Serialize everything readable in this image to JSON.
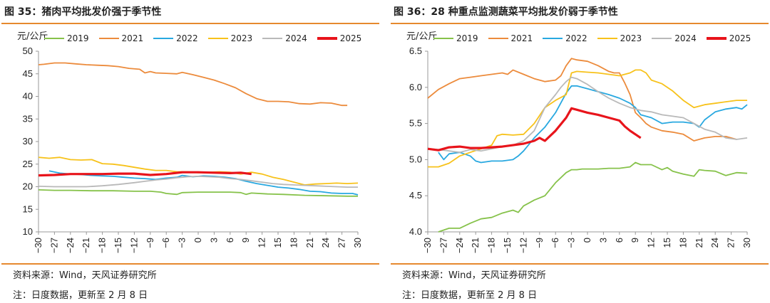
{
  "charts": [
    {
      "title": "图 35：猪肉平均批发价强于季节性",
      "source": "资料来源：Wind，天风证券研究所",
      "note": "注：日度数据，更新至 2 月 8 日"
    },
    {
      "title": "图 36：28 种重点监测蔬菜平均批发价弱于季节性",
      "source": "资料来源：Wind，天风证券研究所",
      "note": "注：日度数据，更新至 2 月 8 日"
    }
  ],
  "colors": {
    "2019": "#86c24a",
    "2021": "#ec8b3c",
    "2022": "#28a8e0",
    "2023": "#f7c21b",
    "2024": "#b9b9b9",
    "2025": "#e8141b",
    "rule": "#e6892e"
  },
  "chart_data": [
    {
      "type": "line",
      "title": "图 35：猪肉平均批发价强于季节性",
      "ylabel": "元/公斤",
      "xlabel": "",
      "ylim": [
        10,
        50
      ],
      "yticks": [
        "10",
        "15",
        "20",
        "25",
        "30",
        "35",
        "40",
        "45",
        "50"
      ],
      "xlim": [
        -30,
        30
      ],
      "xticks": [
        "−30",
        "−27",
        "−24",
        "−21",
        "−18",
        "−15",
        "−12",
        "−9",
        "−6",
        "−3",
        "0",
        "3",
        "6",
        "9",
        "12",
        "15",
        "18",
        "21",
        "24",
        "27",
        "30"
      ],
      "grid": false,
      "legend": "top",
      "series": [
        {
          "name": "2019",
          "x": [
            -30,
            -27,
            -24,
            -20,
            -16,
            -12,
            -9,
            -7,
            -6,
            -4,
            -3,
            0,
            3,
            6,
            8,
            9,
            10,
            13,
            16,
            20,
            24,
            28,
            30
          ],
          "y": [
            19.3,
            19.2,
            19.2,
            19.1,
            19.1,
            19.0,
            19.0,
            18.8,
            18.5,
            18.3,
            18.7,
            18.8,
            18.8,
            18.8,
            18.7,
            18.3,
            18.6,
            18.4,
            18.3,
            18.1,
            18.0,
            17.9,
            17.9
          ]
        },
        {
          "name": "2021",
          "x": [
            -30,
            -29,
            -27,
            -25,
            -23,
            -21,
            -19,
            -17,
            -15,
            -13,
            -11,
            -10,
            -9,
            -8,
            -6,
            -4,
            -3,
            -1,
            1,
            3,
            5,
            7,
            9,
            11,
            13,
            15,
            17,
            19,
            21,
            23,
            25,
            27,
            28
          ],
          "y": [
            47.0,
            47.1,
            47.4,
            47.4,
            47.2,
            47.0,
            46.9,
            46.8,
            46.6,
            46.2,
            46.0,
            45.2,
            45.5,
            45.2,
            45.1,
            45.0,
            45.3,
            44.8,
            44.2,
            43.6,
            42.8,
            41.9,
            40.6,
            39.5,
            38.9,
            38.9,
            38.8,
            38.4,
            38.3,
            38.6,
            38.5,
            38.0,
            38.0
          ]
        },
        {
          "name": "2022",
          "x": [
            -28,
            -26,
            -24,
            -22,
            -20,
            -18,
            -16,
            -14,
            -12,
            -10,
            -8,
            -6,
            -4,
            -3,
            -1,
            1,
            3,
            5,
            7,
            9,
            11,
            13,
            15,
            17,
            19,
            21,
            23,
            25,
            27,
            29,
            30
          ],
          "y": [
            23.5,
            23.0,
            22.8,
            22.7,
            22.5,
            22.4,
            22.3,
            22.1,
            21.9,
            21.8,
            21.6,
            21.9,
            22.1,
            22.5,
            22.2,
            22.4,
            22.3,
            22.1,
            21.8,
            21.2,
            20.7,
            20.3,
            19.9,
            19.7,
            19.4,
            19.0,
            18.9,
            18.6,
            18.5,
            18.5,
            18.2
          ]
        },
        {
          "name": "2023",
          "x": [
            -30,
            -28,
            -26,
            -24,
            -22,
            -20,
            -18,
            -16,
            -14,
            -12,
            -10,
            -8,
            -6,
            -4,
            -2,
            0,
            2,
            4,
            6,
            8,
            10,
            12,
            14,
            16,
            18,
            20,
            22,
            24,
            26,
            28,
            30
          ],
          "y": [
            26.5,
            26.3,
            26.5,
            26.0,
            25.9,
            26.0,
            25.1,
            25.0,
            24.7,
            24.3,
            23.9,
            23.6,
            23.6,
            23.3,
            23.3,
            23.1,
            23.2,
            23.3,
            23.2,
            22.8,
            23.2,
            22.8,
            22.1,
            21.6,
            21.0,
            20.4,
            20.6,
            20.7,
            20.8,
            20.7,
            20.8
          ]
        },
        {
          "name": "2024",
          "x": [
            -30,
            -27,
            -24,
            -21,
            -18,
            -15,
            -12,
            -10,
            -8,
            -6,
            -4,
            -2,
            0,
            2,
            4,
            6,
            8,
            10,
            12,
            14,
            16,
            18,
            20,
            22,
            24,
            26,
            28,
            30
          ],
          "y": [
            20.1,
            20.0,
            20.0,
            20.0,
            20.2,
            20.5,
            20.9,
            21.2,
            21.5,
            21.7,
            22.0,
            22.2,
            22.3,
            22.2,
            22.1,
            21.8,
            21.6,
            21.3,
            21.0,
            20.7,
            20.5,
            20.4,
            20.3,
            20.2,
            20.1,
            20.0,
            19.9,
            19.9
          ]
        },
        {
          "name": "2025",
          "x": [
            -30,
            -27,
            -24,
            -21,
            -18,
            -15,
            -12,
            -9,
            -6,
            -3,
            0,
            3,
            6,
            8,
            10
          ],
          "y": [
            22.5,
            22.6,
            22.8,
            22.8,
            22.8,
            22.9,
            22.9,
            22.6,
            22.8,
            23.2,
            23.2,
            23.1,
            23.0,
            23.1,
            22.8
          ]
        }
      ]
    },
    {
      "type": "line",
      "title": "图 36：28 种重点监测蔬菜平均批发价弱于季节性",
      "ylabel": "元/公斤",
      "xlabel": "",
      "ylim": [
        4.0,
        6.5
      ],
      "yticks": [
        "4.0",
        "4.5",
        "5.0",
        "5.5",
        "6.0",
        "6.5"
      ],
      "xlim": [
        -30,
        30
      ],
      "xticks": [
        "−30",
        "−27",
        "−24",
        "−21",
        "−18",
        "−15",
        "−12",
        "−9",
        "−6",
        "−3",
        "0",
        "3",
        "6",
        "9",
        "12",
        "15",
        "18",
        "21",
        "24",
        "27",
        "30"
      ],
      "grid": false,
      "legend": "top",
      "series": [
        {
          "name": "2019",
          "x": [
            -28,
            -26,
            -24,
            -22,
            -20,
            -18,
            -16,
            -14,
            -13,
            -12,
            -11,
            -10,
            -8,
            -6,
            -4,
            -3,
            -2,
            -1,
            0,
            2,
            4,
            6,
            8,
            9,
            10,
            12,
            14,
            15,
            16,
            18,
            20,
            21,
            22,
            24,
            26,
            28,
            30
          ],
          "y": [
            4.0,
            4.05,
            4.05,
            4.12,
            4.18,
            4.2,
            4.26,
            4.3,
            4.27,
            4.36,
            4.4,
            4.44,
            4.5,
            4.68,
            4.82,
            4.86,
            4.86,
            4.87,
            4.87,
            4.87,
            4.88,
            4.88,
            4.9,
            4.96,
            4.93,
            4.93,
            4.86,
            4.89,
            4.84,
            4.8,
            4.77,
            4.86,
            4.85,
            4.84,
            4.78,
            4.82,
            4.81
          ]
        },
        {
          "name": "2021",
          "x": [
            -30,
            -28,
            -26,
            -24,
            -22,
            -20,
            -18,
            -16,
            -15,
            -14,
            -12,
            -10,
            -8,
            -6,
            -5,
            -4,
            -3,
            -2,
            -1,
            0,
            2,
            4,
            5,
            6,
            7,
            8,
            9,
            10,
            11,
            12,
            14,
            16,
            18,
            20,
            22,
            24,
            26,
            28
          ],
          "y": [
            5.85,
            5.97,
            6.05,
            6.12,
            6.14,
            6.16,
            6.18,
            6.2,
            6.18,
            6.24,
            6.18,
            6.12,
            6.08,
            6.1,
            6.16,
            6.3,
            6.4,
            6.38,
            6.37,
            6.36,
            6.3,
            6.22,
            6.2,
            6.2,
            6.06,
            5.9,
            5.65,
            5.58,
            5.5,
            5.45,
            5.4,
            5.38,
            5.35,
            5.26,
            5.3,
            5.32,
            5.32,
            5.28
          ]
        },
        {
          "name": "2022",
          "x": [
            -28,
            -27,
            -26,
            -24,
            -22,
            -21,
            -20,
            -18,
            -16,
            -14,
            -13,
            -12,
            -10,
            -8,
            -6,
            -4,
            -3,
            -2,
            0,
            2,
            4,
            6,
            8,
            9,
            10,
            12,
            14,
            16,
            18,
            20,
            21,
            22,
            24,
            26,
            28,
            29,
            30
          ],
          "y": [
            5.1,
            5.0,
            5.08,
            5.1,
            5.05,
            4.98,
            4.96,
            4.98,
            4.98,
            5.0,
            5.05,
            5.12,
            5.3,
            5.45,
            5.65,
            5.92,
            6.02,
            6.02,
            5.98,
            5.94,
            5.9,
            5.85,
            5.78,
            5.72,
            5.62,
            5.58,
            5.5,
            5.52,
            5.52,
            5.5,
            5.45,
            5.55,
            5.66,
            5.7,
            5.72,
            5.7,
            5.76
          ]
        },
        {
          "name": "2023",
          "x": [
            -30,
            -28,
            -26,
            -24,
            -22,
            -20,
            -18,
            -17,
            -16,
            -14,
            -12,
            -10,
            -8,
            -6,
            -4,
            -3,
            -2,
            0,
            2,
            4,
            6,
            8,
            9,
            10,
            11,
            12,
            14,
            16,
            18,
            20,
            22,
            24,
            26,
            28,
            30
          ],
          "y": [
            4.9,
            4.9,
            4.95,
            5.05,
            5.1,
            5.15,
            5.2,
            5.33,
            5.35,
            5.34,
            5.35,
            5.5,
            5.72,
            5.82,
            5.9,
            6.2,
            6.22,
            6.21,
            6.2,
            6.18,
            6.16,
            6.2,
            6.24,
            6.24,
            6.2,
            6.1,
            6.05,
            5.95,
            5.82,
            5.72,
            5.76,
            5.78,
            5.8,
            5.82,
            5.82
          ]
        },
        {
          "name": "2024",
          "x": [
            -30,
            -28,
            -26,
            -24,
            -22,
            -20,
            -18,
            -16,
            -14,
            -12,
            -10,
            -8,
            -6,
            -5,
            -4,
            -3,
            -2,
            0,
            2,
            4,
            6,
            8,
            10,
            12,
            14,
            16,
            18,
            20,
            22,
            24,
            26,
            28,
            30
          ],
          "y": [
            5.15,
            5.14,
            5.12,
            5.1,
            5.14,
            5.12,
            5.15,
            5.18,
            5.2,
            5.26,
            5.4,
            5.72,
            5.9,
            6.0,
            6.08,
            6.14,
            6.12,
            6.04,
            5.94,
            5.85,
            5.78,
            5.72,
            5.68,
            5.66,
            5.62,
            5.6,
            5.58,
            5.5,
            5.42,
            5.38,
            5.3,
            5.28,
            5.3
          ]
        },
        {
          "name": "2025",
          "x": [
            -30,
            -28,
            -26,
            -24,
            -22,
            -20,
            -18,
            -16,
            -14,
            -12,
            -10,
            -9,
            -8,
            -6,
            -4,
            -3,
            -2,
            0,
            2,
            4,
            6,
            7,
            8,
            10
          ],
          "y": [
            5.15,
            5.13,
            5.17,
            5.18,
            5.16,
            5.16,
            5.17,
            5.18,
            5.2,
            5.22,
            5.26,
            5.3,
            5.26,
            5.4,
            5.58,
            5.71,
            5.69,
            5.65,
            5.62,
            5.58,
            5.54,
            5.46,
            5.4,
            5.3
          ]
        }
      ]
    }
  ]
}
